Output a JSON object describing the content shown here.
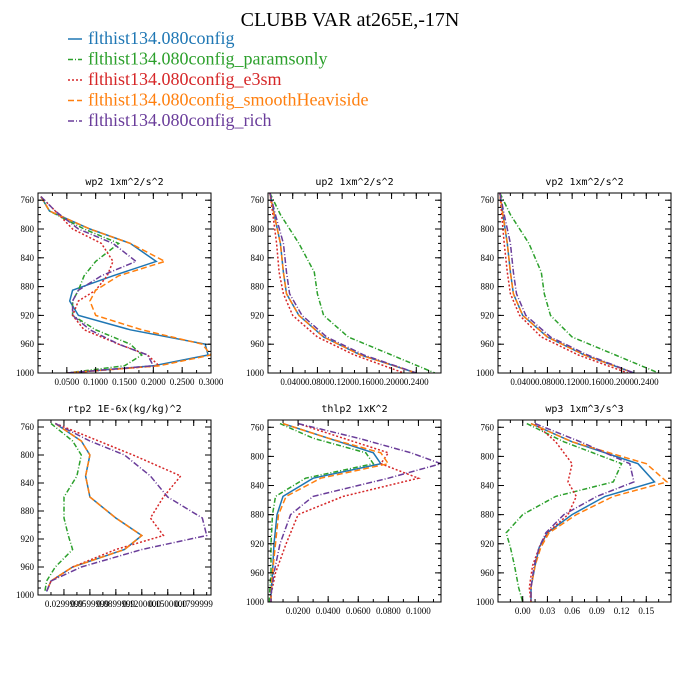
{
  "figure": {
    "title": "CLUBB VAR at265E,-17N"
  },
  "legend": [
    {
      "name": "flthist134.080config",
      "color": "#1f77b4",
      "dash": ""
    },
    {
      "name": "flthist134.080config_paramsonly",
      "color": "#2ca02c",
      "dash": "5,2,1,2"
    },
    {
      "name": "flthist134.080config_e3sm",
      "color": "#d62728",
      "dash": "2,2"
    },
    {
      "name": "flthist134.080config_smoothHeaviside",
      "color": "#ff7f0e",
      "dash": "6,3"
    },
    {
      "name": "flthist134.080config_rich",
      "color": "#6a3d9a",
      "dash": "6,2,1,2"
    }
  ],
  "chart_data": [
    {
      "type": "line",
      "title": "wp2  1xm^2/s^2",
      "xlim": [
        0,
        0.3
      ],
      "ylim": [
        1000,
        750
      ],
      "xticks": [
        0.05,
        0.1,
        0.15,
        0.2,
        0.25,
        0.3
      ],
      "xtick_labels": [
        "0.0500",
        "0.1000",
        "0.1500",
        "0.2000",
        "0.2500",
        "0.3000"
      ],
      "yticks": [
        760,
        800,
        840,
        880,
        920,
        960,
        1000
      ],
      "y": [
        755,
        775,
        800,
        820,
        845,
        865,
        885,
        900,
        920,
        940,
        960,
        975,
        990,
        1000
      ],
      "series": [
        {
          "values": [
            0.005,
            0.02,
            0.09,
            0.16,
            0.205,
            0.13,
            0.06,
            0.055,
            0.07,
            0.16,
            0.29,
            0.295,
            0.2,
            0.05
          ]
        },
        {
          "values": [
            0.005,
            0.02,
            0.08,
            0.14,
            0.1,
            0.08,
            0.07,
            0.06,
            0.06,
            0.1,
            0.16,
            0.18,
            0.15,
            0.05
          ]
        },
        {
          "values": [
            0.005,
            0.03,
            0.06,
            0.11,
            0.13,
            0.12,
            0.1,
            0.07,
            0.06,
            0.08,
            0.14,
            0.19,
            0.21,
            0.05
          ]
        },
        {
          "values": [
            0.005,
            0.02,
            0.09,
            0.16,
            0.22,
            0.14,
            0.1,
            0.09,
            0.1,
            0.18,
            0.285,
            0.3,
            0.21,
            0.05
          ]
        },
        {
          "values": [
            0.005,
            0.03,
            0.07,
            0.13,
            0.17,
            0.11,
            0.07,
            0.06,
            0.06,
            0.09,
            0.14,
            0.19,
            0.2,
            0.05
          ]
        }
      ]
    },
    {
      "type": "line",
      "title": "up2  1xm^2/s^2",
      "xlim": [
        0,
        0.28
      ],
      "ylim": [
        1000,
        750
      ],
      "xticks": [
        0.04,
        0.08,
        0.12,
        0.16,
        0.2,
        0.24
      ],
      "xtick_labels": [
        "0.0400",
        "0.0800",
        "0.1200",
        "0.1600",
        "0.2000",
        "0.2400"
      ],
      "yticks": [
        760,
        800,
        840,
        880,
        920,
        960,
        1000
      ],
      "y": [
        750,
        780,
        820,
        860,
        890,
        920,
        950,
        975,
        1000
      ],
      "series": [
        {
          "values": [
            0.003,
            0.01,
            0.02,
            0.025,
            0.03,
            0.05,
            0.09,
            0.15,
            0.24
          ]
        },
        {
          "values": [
            0.003,
            0.02,
            0.05,
            0.075,
            0.08,
            0.09,
            0.13,
            0.2,
            0.27
          ]
        },
        {
          "values": [
            0.003,
            0.008,
            0.014,
            0.018,
            0.025,
            0.04,
            0.08,
            0.14,
            0.22
          ]
        },
        {
          "values": [
            0.003,
            0.01,
            0.02,
            0.025,
            0.03,
            0.05,
            0.09,
            0.15,
            0.24
          ]
        },
        {
          "values": [
            0.003,
            0.012,
            0.025,
            0.03,
            0.035,
            0.055,
            0.095,
            0.155,
            0.24
          ]
        }
      ]
    },
    {
      "type": "line",
      "title": "vp2  1xm^2/s^2",
      "xlim": [
        0,
        0.28
      ],
      "ylim": [
        1000,
        750
      ],
      "xticks": [
        0.04,
        0.08,
        0.12,
        0.16,
        0.2,
        0.24
      ],
      "xtick_labels": [
        "0.0400",
        "0.0800",
        "0.1200",
        "0.1600",
        "0.2000",
        "0.2400"
      ],
      "yticks": [
        760,
        800,
        840,
        880,
        920,
        960,
        1000
      ],
      "y": [
        750,
        780,
        820,
        860,
        890,
        920,
        950,
        975,
        1000
      ],
      "series": [
        {
          "values": [
            0.003,
            0.008,
            0.015,
            0.02,
            0.025,
            0.04,
            0.08,
            0.14,
            0.22
          ]
        },
        {
          "values": [
            0.003,
            0.02,
            0.05,
            0.07,
            0.075,
            0.085,
            0.12,
            0.19,
            0.26
          ]
        },
        {
          "values": [
            0.003,
            0.006,
            0.01,
            0.015,
            0.02,
            0.035,
            0.07,
            0.13,
            0.21
          ]
        },
        {
          "values": [
            0.003,
            0.008,
            0.015,
            0.02,
            0.025,
            0.04,
            0.08,
            0.14,
            0.22
          ]
        },
        {
          "values": [
            0.003,
            0.01,
            0.02,
            0.025,
            0.03,
            0.045,
            0.085,
            0.145,
            0.22
          ]
        }
      ]
    },
    {
      "type": "line",
      "title": "rtp2  1E-6x(kg/kg)^2",
      "xlim": [
        0,
        0.2
      ],
      "ylim": [
        1000,
        750
      ],
      "xticks": [
        0.03,
        0.06,
        0.09,
        0.12,
        0.15,
        0.18
      ],
      "xtick_labels": [
        "0.0299999",
        "0.0599999",
        "0.0899999",
        "0.1200000",
        "0.1500000",
        "0.1799999"
      ],
      "yticks": [
        760,
        800,
        840,
        880,
        920,
        960,
        1000
      ],
      "y": [
        755,
        780,
        800,
        830,
        860,
        890,
        915,
        935,
        960,
        980,
        995
      ],
      "series": [
        {
          "values": [
            0.02,
            0.05,
            0.06,
            0.055,
            0.06,
            0.09,
            0.12,
            0.1,
            0.04,
            0.015,
            0.01
          ]
        },
        {
          "values": [
            0.015,
            0.04,
            0.05,
            0.045,
            0.03,
            0.03,
            0.035,
            0.04,
            0.02,
            0.01,
            0.008
          ]
        },
        {
          "values": [
            0.02,
            0.07,
            0.11,
            0.165,
            0.145,
            0.13,
            0.145,
            0.09,
            0.04,
            0.015,
            0.01
          ]
        },
        {
          "values": [
            0.02,
            0.05,
            0.06,
            0.055,
            0.06,
            0.09,
            0.12,
            0.1,
            0.04,
            0.015,
            0.01
          ]
        },
        {
          "values": [
            0.02,
            0.06,
            0.1,
            0.13,
            0.15,
            0.19,
            0.195,
            0.12,
            0.05,
            0.015,
            0.01
          ]
        }
      ]
    },
    {
      "type": "line",
      "title": "thlp2  1xK^2",
      "xlim": [
        0,
        0.115
      ],
      "ylim": [
        1000,
        750
      ],
      "xticks": [
        0.02,
        0.04,
        0.06,
        0.08,
        0.1
      ],
      "xtick_labels": [
        "0.0200",
        "0.0400",
        "0.0600",
        "0.0800",
        "0.1000"
      ],
      "yticks": [
        760,
        800,
        840,
        880,
        920,
        960,
        1000
      ],
      "y": [
        755,
        775,
        795,
        810,
        830,
        855,
        880,
        920,
        960,
        990,
        1000
      ],
      "series": [
        {
          "values": [
            0.01,
            0.04,
            0.07,
            0.075,
            0.03,
            0.01,
            0.006,
            0.004,
            0.003,
            0.002,
            0.002
          ]
        },
        {
          "values": [
            0.008,
            0.03,
            0.065,
            0.07,
            0.025,
            0.005,
            0.003,
            0.002,
            0.002,
            0.001,
            0.001
          ]
        },
        {
          "values": [
            0.02,
            0.05,
            0.08,
            0.075,
            0.1,
            0.05,
            0.02,
            0.012,
            0.005,
            0.002,
            0.002
          ]
        },
        {
          "values": [
            0.01,
            0.04,
            0.075,
            0.08,
            0.035,
            0.012,
            0.007,
            0.005,
            0.003,
            0.002,
            0.002
          ]
        },
        {
          "values": [
            0.02,
            0.06,
            0.095,
            0.115,
            0.08,
            0.03,
            0.015,
            0.008,
            0.004,
            0.002,
            0.002
          ]
        }
      ]
    },
    {
      "type": "line",
      "title": "wp3  1xm^3/s^3",
      "xlim": [
        -0.03,
        0.18
      ],
      "ylim": [
        1000,
        750
      ],
      "xticks": [
        0,
        0.03,
        0.06,
        0.09,
        0.12,
        0.15
      ],
      "xtick_labels": [
        "0.00",
        "0.03",
        "0.06",
        "0.09",
        "0.12",
        "0.15"
      ],
      "yticks": [
        760,
        800,
        840,
        880,
        920,
        960,
        1000
      ],
      "y": [
        755,
        780,
        810,
        835,
        855,
        880,
        905,
        925,
        950,
        980,
        1000
      ],
      "series": [
        {
          "values": [
            0.01,
            0.06,
            0.14,
            0.16,
            0.1,
            0.06,
            0.03,
            0.02,
            0.015,
            0.01,
            0.01
          ]
        },
        {
          "values": [
            0.005,
            0.05,
            0.12,
            0.11,
            0.04,
            0.0,
            -0.02,
            -0.015,
            -0.01,
            -0.005,
            0.0
          ]
        },
        {
          "values": [
            0.015,
            0.04,
            0.06,
            0.055,
            0.065,
            0.055,
            0.03,
            0.02,
            0.012,
            0.008,
            0.01
          ]
        },
        {
          "values": [
            0.01,
            0.06,
            0.15,
            0.175,
            0.11,
            0.065,
            0.032,
            0.022,
            0.015,
            0.01,
            0.01
          ]
        },
        {
          "values": [
            0.015,
            0.07,
            0.13,
            0.135,
            0.09,
            0.05,
            0.028,
            0.02,
            0.014,
            0.01,
            0.01
          ]
        }
      ]
    }
  ]
}
